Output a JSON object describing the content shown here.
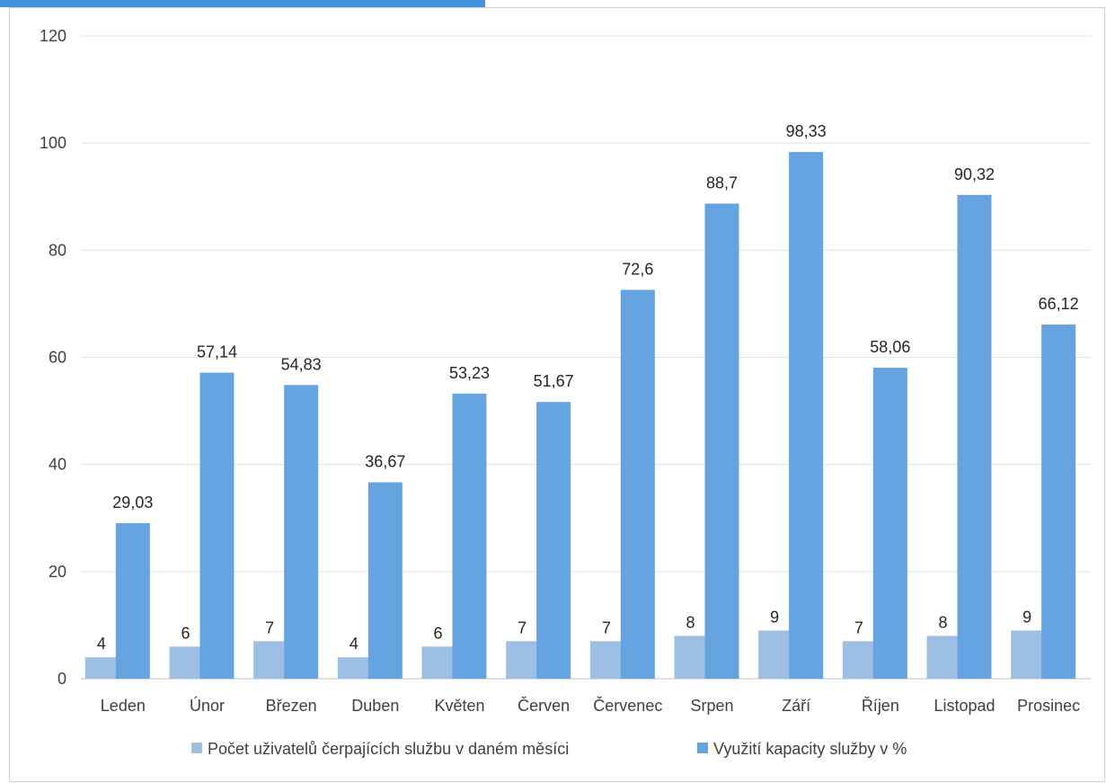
{
  "colors": {
    "series1": "#9dbfe3",
    "series1_edge": "#4a90d9",
    "series2": "#65a4e1",
    "grid": "#e3e3e3",
    "axis": "#bfbfbf"
  },
  "chart_data": {
    "type": "bar",
    "title": "",
    "xlabel": "",
    "ylabel": "",
    "ylim": [
      0,
      120
    ],
    "yticks": [
      0,
      20,
      40,
      60,
      80,
      100,
      120
    ],
    "ytick_labels": [
      "0",
      "20",
      "40",
      "60",
      "80",
      "100",
      "120"
    ],
    "grid": true,
    "legend_position": "bottom",
    "categories": [
      "Leden",
      "Únor",
      "Březen",
      "Duben",
      "Květen",
      "Červen",
      "Červenec",
      "Srpen",
      "Září",
      "Říjen",
      "Listopad",
      "Prosinec"
    ],
    "series": [
      {
        "name": "Počet uživatelů čerpajících službu v daném měsíci",
        "values": [
          4,
          6,
          7,
          4,
          6,
          7,
          7,
          8,
          9,
          7,
          8,
          9
        ],
        "value_labels": [
          "4",
          "6",
          "7",
          "4",
          "6",
          "7",
          "7",
          "8",
          "9",
          "7",
          "8",
          "9"
        ]
      },
      {
        "name": "Využití kapacity služby v %",
        "values": [
          29.03,
          57.14,
          54.83,
          36.67,
          53.23,
          51.67,
          72.6,
          88.7,
          98.33,
          58.06,
          90.32,
          66.12
        ],
        "value_labels": [
          "29,03",
          "57,14",
          "54,83",
          "36,67",
          "53,23",
          "51,67",
          "72,6",
          "88,7",
          "98,33",
          "58,06",
          "90,32",
          "66,12"
        ]
      }
    ]
  }
}
